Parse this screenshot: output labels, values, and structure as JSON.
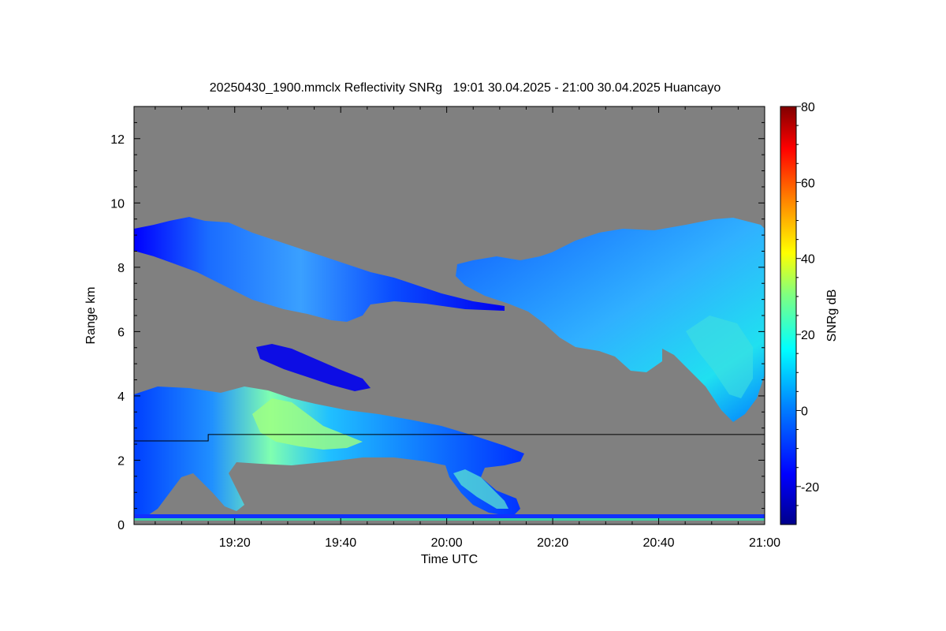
{
  "chart_data": {
    "type": "heatmap",
    "title": "20250430_1900.mmclx Reflectivity SNRg   19:01 30.04.2025 - 21:00 30.04.2025 Huancayo",
    "xlabel": "Time UTC",
    "ylabel": "Range km",
    "colorbar_label": "SNRg dB",
    "x_tick_labels": [
      "19:20",
      "19:40",
      "20:00",
      "20:20",
      "20:40",
      "21:00"
    ],
    "x_tick_minutes": [
      20,
      40,
      60,
      80,
      100,
      120
    ],
    "xlim_minutes": [
      1,
      120
    ],
    "y_ticks": [
      0,
      2,
      4,
      6,
      8,
      10,
      12
    ],
    "ylim": [
      0,
      13
    ],
    "colorbar_ticks": [
      -20,
      0,
      20,
      40,
      60,
      80
    ],
    "colorbar_range": [
      -30,
      80
    ],
    "background_color": "#808080",
    "colormap": [
      "#00008b",
      "#0000ff",
      "#0080ff",
      "#00ffff",
      "#ffff00",
      "#ff8000",
      "#ff0000",
      "#800000"
    ],
    "boundary_line": [
      [
        1,
        2.6
      ],
      [
        15,
        2.6
      ],
      [
        15,
        2.8
      ],
      [
        120,
        2.8
      ]
    ],
    "cloud_layers": [
      {
        "name": "upper-left layer",
        "x_range": [
          1,
          45
        ],
        "range_km": [
          6.5,
          9.5
        ]
      },
      {
        "name": "upper-right layer",
        "x_range": [
          62,
          120
        ],
        "range_km": [
          3.2,
          9.5
        ]
      },
      {
        "name": "lower layer",
        "x_range": [
          1,
          76
        ],
        "range_km": [
          0.2,
          4.3
        ]
      }
    ]
  }
}
